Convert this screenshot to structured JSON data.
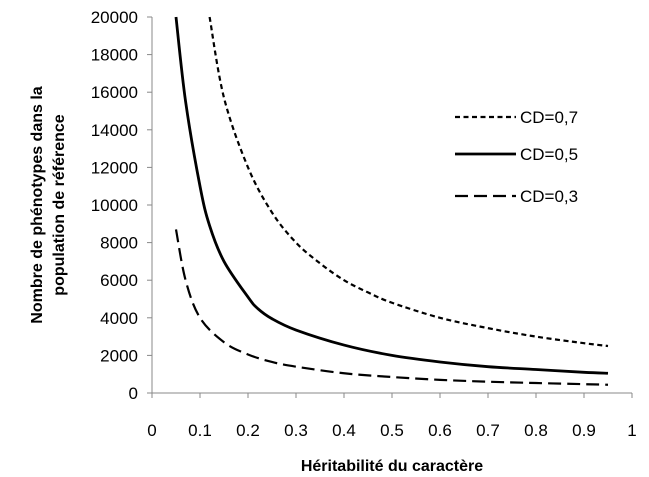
{
  "chart_data": {
    "type": "line",
    "title": "",
    "xlabel": "Héritabilité du caractère",
    "ylabel_lines": [
      "Nombre de phénotypes dans la",
      "population de référence"
    ],
    "xlim": [
      0,
      1
    ],
    "ylim": [
      0,
      20000
    ],
    "x_ticks": [
      0,
      0.1,
      0.2,
      0.3,
      0.4,
      0.5,
      0.6,
      0.7,
      0.8,
      0.9,
      1
    ],
    "x_tick_labels": [
      "0",
      "0.1",
      "0.2",
      "0.3",
      "0.4",
      "0.5",
      "0.6",
      "0.7",
      "0.8",
      "0.9",
      "1"
    ],
    "y_ticks": [
      0,
      2000,
      4000,
      6000,
      8000,
      10000,
      12000,
      14000,
      16000,
      18000,
      20000
    ],
    "y_tick_labels": [
      "0",
      "2000",
      "4000",
      "6000",
      "8000",
      "10000",
      "12000",
      "14000",
      "16000",
      "18000",
      "20000"
    ],
    "grid": false,
    "legend_position": "right-upper",
    "series": [
      {
        "name": "CD=0,7",
        "style": "short-dash",
        "color": "#000000",
        "x": [
          0.12,
          0.15,
          0.2,
          0.25,
          0.3,
          0.35,
          0.4,
          0.45,
          0.5,
          0.6,
          0.7,
          0.8,
          0.9,
          0.95
        ],
        "y": [
          20000,
          15700,
          12000,
          9600,
          8000,
          6900,
          6000,
          5350,
          4800,
          4000,
          3450,
          3000,
          2650,
          2500
        ]
      },
      {
        "name": "CD=0,5",
        "style": "solid",
        "color": "#000000",
        "x": [
          0.05,
          0.07,
          0.1,
          0.12,
          0.15,
          0.2,
          0.22,
          0.25,
          0.3,
          0.4,
          0.5,
          0.6,
          0.7,
          0.8,
          0.9,
          0.95
        ],
        "y": [
          20000,
          15500,
          11000,
          8900,
          7000,
          5100,
          4500,
          3950,
          3350,
          2550,
          2000,
          1650,
          1400,
          1250,
          1100,
          1050
        ],
        "smooth": true
      },
      {
        "name": "CD=0,3",
        "style": "long-dash",
        "color": "#000000",
        "x": [
          0.05,
          0.07,
          0.1,
          0.15,
          0.2,
          0.25,
          0.3,
          0.4,
          0.5,
          0.6,
          0.7,
          0.8,
          0.9,
          0.95
        ],
        "y": [
          8700,
          6000,
          4000,
          2700,
          2050,
          1650,
          1400,
          1050,
          850,
          700,
          600,
          530,
          470,
          440
        ]
      }
    ]
  }
}
